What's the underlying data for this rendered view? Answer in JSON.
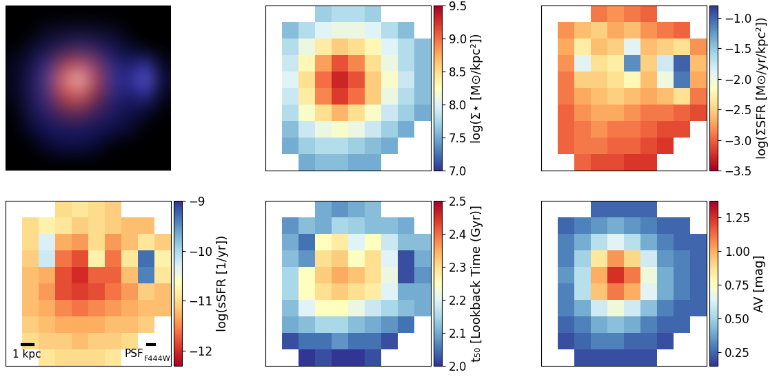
{
  "chart_data": [
    {
      "type": "image",
      "tick_labels": false,
      "cells": [
        [
          "#000000",
          "#000000",
          "#000000",
          "#000000",
          "#000000",
          "#000000",
          "#000000",
          "#000000",
          "#000000",
          "#000000"
        ],
        [
          "#000000",
          "#000000",
          "#0a0a20",
          "#0d0d2a",
          "#10102e",
          "#0d0d2a",
          "#0a0a20",
          "#000000",
          "#000000",
          "#000000"
        ],
        [
          "#000000",
          "#0a0a25",
          "#15154a",
          "#2a1f5a",
          "#3a2a6a",
          "#2a2060",
          "#151550",
          "#0a0a30",
          "#000000",
          "#000000"
        ],
        [
          "#05051a",
          "#15154a",
          "#3a2a80",
          "#a04050",
          "#c05060",
          "#803a70",
          "#2a2a80",
          "#1a1a60",
          "#3030a0",
          "#05051a"
        ],
        [
          "#05051a",
          "#1a1a55",
          "#5a3a90",
          "#e07070",
          "#f0c0c0",
          "#b04050",
          "#3a3090",
          "#2a2a90",
          "#6060e0",
          "#0a0a30"
        ],
        [
          "#05051a",
          "#1a1a50",
          "#4a3080",
          "#c04040",
          "#d06060",
          "#802a40",
          "#2a2a80",
          "#1a1a60",
          "#2a2a90",
          "#05051a"
        ],
        [
          "#000000",
          "#15154a",
          "#2a2070",
          "#5a2a50",
          "#6a2a50",
          "#3a2060",
          "#1a1a60",
          "#10104a",
          "#0a0a30",
          "#000000"
        ],
        [
          "#000000",
          "#0a0a35",
          "#15155a",
          "#1a1a60",
          "#1a1a60",
          "#15155a",
          "#10104a",
          "#0a0a30",
          "#000000",
          "#000000"
        ],
        [
          "#000000",
          "#000000",
          "#0a0a30",
          "#10104a",
          "#10104a",
          "#0a0a35",
          "#000000",
          "#000000",
          "#000000",
          "#000000"
        ],
        [
          "#000000",
          "#000000",
          "#000000",
          "#000000",
          "#000000",
          "#000000",
          "#000000",
          "#000000",
          "#000000",
          "#000000"
        ]
      ]
    },
    {
      "type": "heatmap",
      "tick_labels": false,
      "colorbar_label": "log(Σ⋆ [M⊙/kpc²])",
      "colorbar_range": [
        7.0,
        9.5
      ],
      "colorbar_ticks": [
        7.0,
        7.5,
        8.0,
        8.5,
        9.0,
        9.5
      ],
      "cells": [
        [
          null,
          null,
          null,
          7.7,
          7.8,
          7.8,
          7.7,
          null,
          null,
          null
        ],
        [
          null,
          7.6,
          7.8,
          8.0,
          8.1,
          8.1,
          8.0,
          7.8,
          7.6,
          null
        ],
        [
          null,
          7.8,
          8.1,
          8.4,
          8.6,
          8.5,
          8.3,
          8.0,
          7.8,
          7.6
        ],
        [
          null,
          7.9,
          8.3,
          8.8,
          9.1,
          8.9,
          8.5,
          8.1,
          7.8,
          7.6
        ],
        [
          null,
          8.0,
          8.5,
          9.0,
          9.3,
          9.1,
          8.6,
          8.2,
          7.9,
          7.6
        ],
        [
          null,
          7.9,
          8.4,
          8.9,
          9.2,
          9.0,
          8.6,
          8.1,
          7.8,
          7.6
        ],
        [
          null,
          7.8,
          8.2,
          8.5,
          8.7,
          8.5,
          8.2,
          7.9,
          7.7,
          7.5
        ],
        [
          null,
          7.6,
          7.9,
          8.1,
          8.2,
          8.1,
          7.9,
          7.7,
          7.5,
          null
        ],
        [
          null,
          7.5,
          7.7,
          7.8,
          7.8,
          7.7,
          7.6,
          7.5,
          null,
          null
        ],
        [
          null,
          null,
          7.5,
          7.6,
          7.6,
          7.5,
          7.5,
          null,
          null,
          null
        ]
      ]
    },
    {
      "type": "heatmap",
      "tick_labels": false,
      "colorbar_label": "log(ΣSFR [M⊙/yr/kpc²])",
      "colorbar_range": [
        -3.5,
        -0.8
      ],
      "colorbar_ticks": [
        {
          "value": -1.0,
          "label": "−1.0"
        },
        {
          "value": -1.5,
          "label": "−1.5"
        },
        {
          "value": -2.0,
          "label": "−2.0"
        },
        {
          "value": -2.5,
          "label": "−2.5"
        },
        {
          "value": -3.0,
          "label": "−3.0"
        },
        {
          "value": -3.5,
          "label": "−3.5"
        }
      ],
      "cells": [
        [
          null,
          null,
          null,
          -2.9,
          -2.8,
          -2.9,
          -3.0,
          null,
          null,
          null
        ],
        [
          null,
          -2.8,
          -2.6,
          -2.5,
          -2.7,
          -2.6,
          -2.8,
          -2.9,
          -3.0,
          null
        ],
        [
          null,
          -2.7,
          -2.3,
          -2.6,
          -2.5,
          -1.9,
          -2.6,
          -2.5,
          -2.4,
          -2.8
        ],
        [
          null,
          -2.8,
          -1.9,
          -2.4,
          -2.3,
          -1.2,
          -2.5,
          -1.8,
          -1.0,
          -2.6
        ],
        [
          null,
          -2.9,
          -2.5,
          -2.5,
          -2.4,
          -2.2,
          -2.6,
          -2.0,
          -1.1,
          -2.7
        ],
        [
          null,
          -2.9,
          -2.7,
          -2.6,
          -2.5,
          -2.6,
          -2.7,
          -2.6,
          -2.4,
          -2.9
        ],
        [
          null,
          -3.0,
          -2.8,
          -2.7,
          -2.7,
          -2.8,
          -2.9,
          -2.9,
          -3.0,
          -3.1
        ],
        [
          null,
          -3.0,
          -2.9,
          -2.8,
          -2.9,
          -2.9,
          -3.0,
          -3.1,
          -3.1,
          null
        ],
        [
          null,
          -3.0,
          -2.9,
          -2.9,
          -3.0,
          -3.0,
          -3.1,
          -3.2,
          null,
          null
        ],
        [
          null,
          null,
          -3.0,
          -3.1,
          -3.1,
          -3.2,
          -3.2,
          null,
          null,
          null
        ]
      ]
    },
    {
      "type": "heatmap",
      "tick_labels": false,
      "colorbar_label": "log(sSFR [1/yr])",
      "colorbar_range": [
        -12.3,
        -9.0
      ],
      "colorbar_ticks": [
        {
          "value": -9,
          "label": "−9"
        },
        {
          "value": -10,
          "label": "−10"
        },
        {
          "value": -11,
          "label": "−11"
        },
        {
          "value": -12,
          "label": "−12"
        }
      ],
      "annotations": {
        "scale_bar": "1 kpc",
        "psf": {
          "text": "PSF",
          "subscript": "F444W"
        }
      },
      "cells": [
        [
          null,
          null,
          null,
          -11.0,
          -10.9,
          -11.0,
          -11.1,
          null,
          null,
          null
        ],
        [
          null,
          -11.0,
          -10.8,
          -10.9,
          -11.1,
          -11.0,
          -11.1,
          -11.2,
          -11.2,
          null
        ],
        [
          null,
          -11.0,
          -10.3,
          -11.3,
          -11.4,
          -11.0,
          -11.4,
          -11.2,
          -10.9,
          -11.1
        ],
        [
          null,
          -11.1,
          -10.2,
          -11.6,
          -11.8,
          -10.8,
          -11.6,
          -10.9,
          -9.3,
          -10.8
        ],
        [
          null,
          -11.2,
          -11.3,
          -11.8,
          -12.0,
          -11.7,
          -11.7,
          -11.2,
          -9.4,
          -10.9
        ],
        [
          null,
          -11.2,
          -11.4,
          -11.8,
          -11.9,
          -11.8,
          -11.6,
          -11.4,
          -11.1,
          -11.2
        ],
        [
          null,
          -11.2,
          -11.3,
          -11.5,
          -11.6,
          -11.5,
          -11.4,
          -11.3,
          -11.2,
          -11.2
        ],
        [
          null,
          -11.1,
          -11.2,
          -11.3,
          -11.3,
          -11.3,
          -11.2,
          -11.2,
          -11.1,
          null
        ],
        [
          null,
          -11.0,
          -11.1,
          -11.1,
          -11.2,
          -11.1,
          -11.1,
          -11.0,
          null,
          null
        ],
        [
          null,
          null,
          -10.9,
          -11.0,
          -11.0,
          -11.0,
          -10.9,
          null,
          null,
          null
        ]
      ]
    },
    {
      "type": "heatmap",
      "tick_labels": false,
      "colorbar_label": "t₅₀ [Lookback Time (Gyr)]",
      "colorbar_range": [
        2.0,
        2.5
      ],
      "colorbar_ticks": [
        2.0,
        2.1,
        2.2,
        2.3,
        2.4,
        2.5
      ],
      "cells": [
        [
          null,
          null,
          null,
          2.1,
          2.08,
          2.1,
          2.12,
          null,
          null,
          null
        ],
        [
          null,
          2.08,
          2.12,
          2.1,
          2.15,
          2.14,
          2.12,
          2.12,
          2.1,
          null
        ],
        [
          null,
          2.1,
          2.05,
          2.25,
          2.28,
          2.2,
          2.25,
          2.18,
          2.12,
          2.12
        ],
        [
          null,
          2.12,
          2.08,
          2.3,
          2.32,
          2.25,
          2.3,
          2.2,
          2.02,
          2.1
        ],
        [
          null,
          2.15,
          2.25,
          2.32,
          2.35,
          2.33,
          2.3,
          2.22,
          2.02,
          2.08
        ],
        [
          null,
          2.15,
          2.25,
          2.3,
          2.32,
          2.3,
          2.28,
          2.2,
          2.1,
          2.1
        ],
        [
          null,
          2.12,
          2.2,
          2.25,
          2.25,
          2.22,
          2.18,
          2.15,
          2.12,
          2.1
        ],
        [
          null,
          2.1,
          2.12,
          2.15,
          2.15,
          2.12,
          2.1,
          2.08,
          2.05,
          null
        ],
        [
          null,
          2.02,
          2.05,
          2.05,
          2.08,
          2.05,
          2.05,
          2.02,
          null,
          null
        ],
        [
          null,
          null,
          2.0,
          2.02,
          2.0,
          2.0,
          2.02,
          null,
          null,
          null
        ]
      ]
    },
    {
      "type": "heatmap",
      "tick_labels": false,
      "colorbar_label": "AV [mag]",
      "colorbar_range": [
        0.15,
        1.37
      ],
      "colorbar_ticks": [
        0.25,
        {
          "value": 0.5,
          "label": "0.50"
        },
        0.75,
        {
          "value": 1.0,
          "label": "1.00"
        },
        1.25
      ],
      "cells": [
        [
          null,
          null,
          null,
          0.25,
          0.25,
          0.25,
          0.25,
          null,
          null,
          null
        ],
        [
          null,
          0.25,
          0.3,
          0.35,
          0.4,
          0.35,
          0.3,
          0.25,
          0.25,
          null
        ],
        [
          null,
          0.3,
          0.4,
          0.55,
          0.65,
          0.55,
          0.4,
          0.3,
          0.25,
          0.25
        ],
        [
          null,
          0.3,
          0.5,
          0.85,
          1.05,
          0.9,
          0.6,
          0.35,
          0.3,
          0.25
        ],
        [
          null,
          0.35,
          0.55,
          1.0,
          1.25,
          1.1,
          0.7,
          0.4,
          0.3,
          0.25
        ],
        [
          null,
          0.3,
          0.55,
          0.95,
          1.1,
          1.0,
          0.65,
          0.4,
          0.3,
          0.25
        ],
        [
          null,
          0.3,
          0.4,
          0.6,
          0.7,
          0.6,
          0.45,
          0.3,
          0.25,
          0.25
        ],
        [
          null,
          0.25,
          0.3,
          0.4,
          0.45,
          0.4,
          0.3,
          0.25,
          0.25,
          null
        ],
        [
          null,
          0.2,
          0.25,
          0.3,
          0.3,
          0.25,
          0.25,
          0.2,
          null,
          null
        ],
        [
          null,
          null,
          0.2,
          0.2,
          0.2,
          0.2,
          0.2,
          null,
          null,
          null
        ]
      ]
    }
  ]
}
